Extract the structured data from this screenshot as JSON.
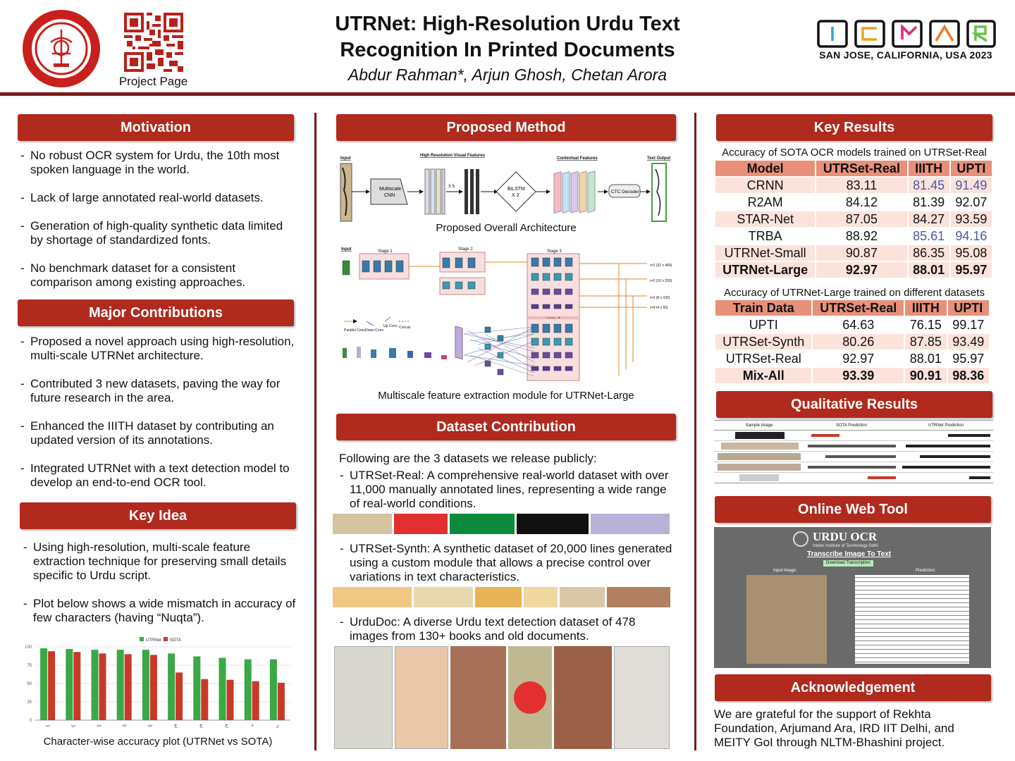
{
  "header": {
    "title": "UTRNet: High-Resolution Urdu Text Recognition In Printed Documents",
    "title_line1": "UTRNet: High-Resolution Urdu Text",
    "title_line2": "Recognition In Printed Documents",
    "authors": "Abdur Rahman*, Arjun Ghosh, Chetan Arora",
    "qr_label": "Project Page",
    "conference": "SAN JOSE, CALIFORNIA, USA 2023",
    "conf_logo": "ICDAR",
    "brand_color": "#b02a1e"
  },
  "motivation": {
    "heading": "Motivation",
    "items": [
      "No robust OCR system for Urdu, the 10th most spoken language in the world.",
      "Lack of large annotated real-world datasets.",
      "Generation of high-quality synthetic data limited by shortage of standardized fonts.",
      "No benchmark dataset for a consistent comparison among existing approaches."
    ]
  },
  "contributions": {
    "heading": "Major Contributions",
    "items": [
      "Proposed a novel approach using high-resolution, multi-scale UTRNet architecture.",
      "Contributed 3 new datasets, paving the way for future research in the area.",
      "Enhanced the IIITH dataset by contributing an updated version of its annotations.",
      "Integrated UTRNet with a text detection model to develop an end-to-end OCR tool."
    ]
  },
  "key_idea": {
    "heading": "Key Idea",
    "items": [
      "Using high-resolution, multi-scale feature extraction technique for preserving small details specific to Urdu script.",
      "Plot below shows a wide mismatch in accuracy of few characters (having “Nuqta”)."
    ],
    "plot_caption": "Character-wise accuracy plot (UTRNet vs SOTA)"
  },
  "chart_data": {
    "type": "bar",
    "categories": [
      "ب",
      "پ",
      "ت",
      "ٹ",
      "ث",
      "ج",
      "چ",
      "خ",
      "ذ",
      "ز"
    ],
    "series": [
      {
        "name": "UTRNet",
        "color": "#3aa845",
        "values": [
          98,
          97,
          96,
          96,
          96,
          91,
          87,
          85,
          83,
          83
        ]
      },
      {
        "name": "SOTA",
        "color": "#c8392a",
        "values": [
          94,
          93,
          91,
          90,
          89,
          65,
          56,
          55,
          53,
          51
        ]
      }
    ],
    "yticks": [
      0,
      25,
      50,
      75,
      100
    ],
    "ylim": [
      0,
      100
    ],
    "grid": true,
    "legend": "top-center"
  },
  "method": {
    "heading": "Proposed Method",
    "arch_caption": "Proposed Overall Architecture",
    "arch_labels": {
      "input": "Input",
      "hr": "High Resolution Visual Features",
      "cnn": "Multiscale CNN",
      "x5": "X 5",
      "bilstm": "BiLSTM X 2",
      "ctx": "Contextual Features",
      "ctc": "CTC Decoder",
      "out": "Text Output"
    },
    "ms_caption": "Multiscale feature extraction module for UTRNet-Large",
    "ms_labels": {
      "input": "Input",
      "s1": "Stage 1",
      "s2": "Stage 2",
      "s3": "Stage 3",
      "s4": "Stage 4",
      "r1": "r=1 (32 x 400)",
      "r2": "r=2 (16 x 200)",
      "r3": "r=3 (8 x 100)",
      "r4": "r=4 (4 x 50)",
      "l1": "Parallel Conv.",
      "l2": "Down Conv.",
      "l3": "Up Conv.",
      "l4": "Concat."
    }
  },
  "dataset": {
    "heading": "Dataset Contribution",
    "intro": "Following are the 3 datasets we release publicly:",
    "items": [
      "UTRSet-Real: A comprehensive real-world dataset with over 11,000 manually annotated lines, representing a wide range of real-world conditions.",
      "UTRSet-Synth: A synthetic dataset of 20,000 lines generated using a custom module that allows a precise control over variations in text characteristics.",
      "UrduDoc: A diverse Urdu text detection dataset of 478 images from 130+ books and old documents."
    ]
  },
  "key_results": {
    "heading": "Key Results",
    "t1_caption": "Accuracy of SOTA OCR models trained on UTRSet-Real",
    "t1_headers": [
      "Model",
      "UTRSet-Real",
      "IIITH",
      "UPTI"
    ],
    "t1_rows": [
      [
        "CRNN",
        "83.11",
        "81.45",
        "91.49"
      ],
      [
        "R2AM",
        "84.12",
        "81.39",
        "92.07"
      ],
      [
        "STAR-Net",
        "87.05",
        "84.27",
        "93.59"
      ],
      [
        "TRBA",
        "88.92",
        "85.61",
        "94.16"
      ],
      [
        "UTRNet-Small",
        "90.87",
        "86.35",
        "95.08"
      ],
      [
        "UTRNet-Large",
        "92.97",
        "88.01",
        "95.97"
      ]
    ],
    "t2_caption": "Accuracy of UTRNet-Large trained on different datasets",
    "t2_headers": [
      "Train Data",
      "UTRSet-Real",
      "IIITH",
      "UPTI"
    ],
    "t2_rows": [
      [
        "UPTI",
        "64.63",
        "76.15",
        "99.17"
      ],
      [
        "UTRSet-Synth",
        "80.26",
        "87.85",
        "93.49"
      ],
      [
        "UTRSet-Real",
        "92.97",
        "88.01",
        "95.97"
      ],
      [
        "Mix-All",
        "93.39",
        "90.91",
        "98.36"
      ]
    ]
  },
  "qualitative": {
    "heading": "Qualitative Results",
    "cols": [
      "Sample Image",
      "SOTA Prediction",
      "UTRNet Prediction"
    ]
  },
  "webtool": {
    "heading": "Online Web Tool",
    "app_title": "URDU OCR",
    "app_sub": "Indian Institute of Technology Delhi",
    "link": "Transcribe Image To Text",
    "button": "Download Transcription",
    "input_label": "Input Image:",
    "pred_label": "Prediction:"
  },
  "ack": {
    "heading": "Acknowledgement",
    "text": "We are grateful for the support of Rekhta Foundation, Arjumand Ara, IRD IIT Delhi, and MEITY GoI through NLTM-Bhashini project."
  }
}
